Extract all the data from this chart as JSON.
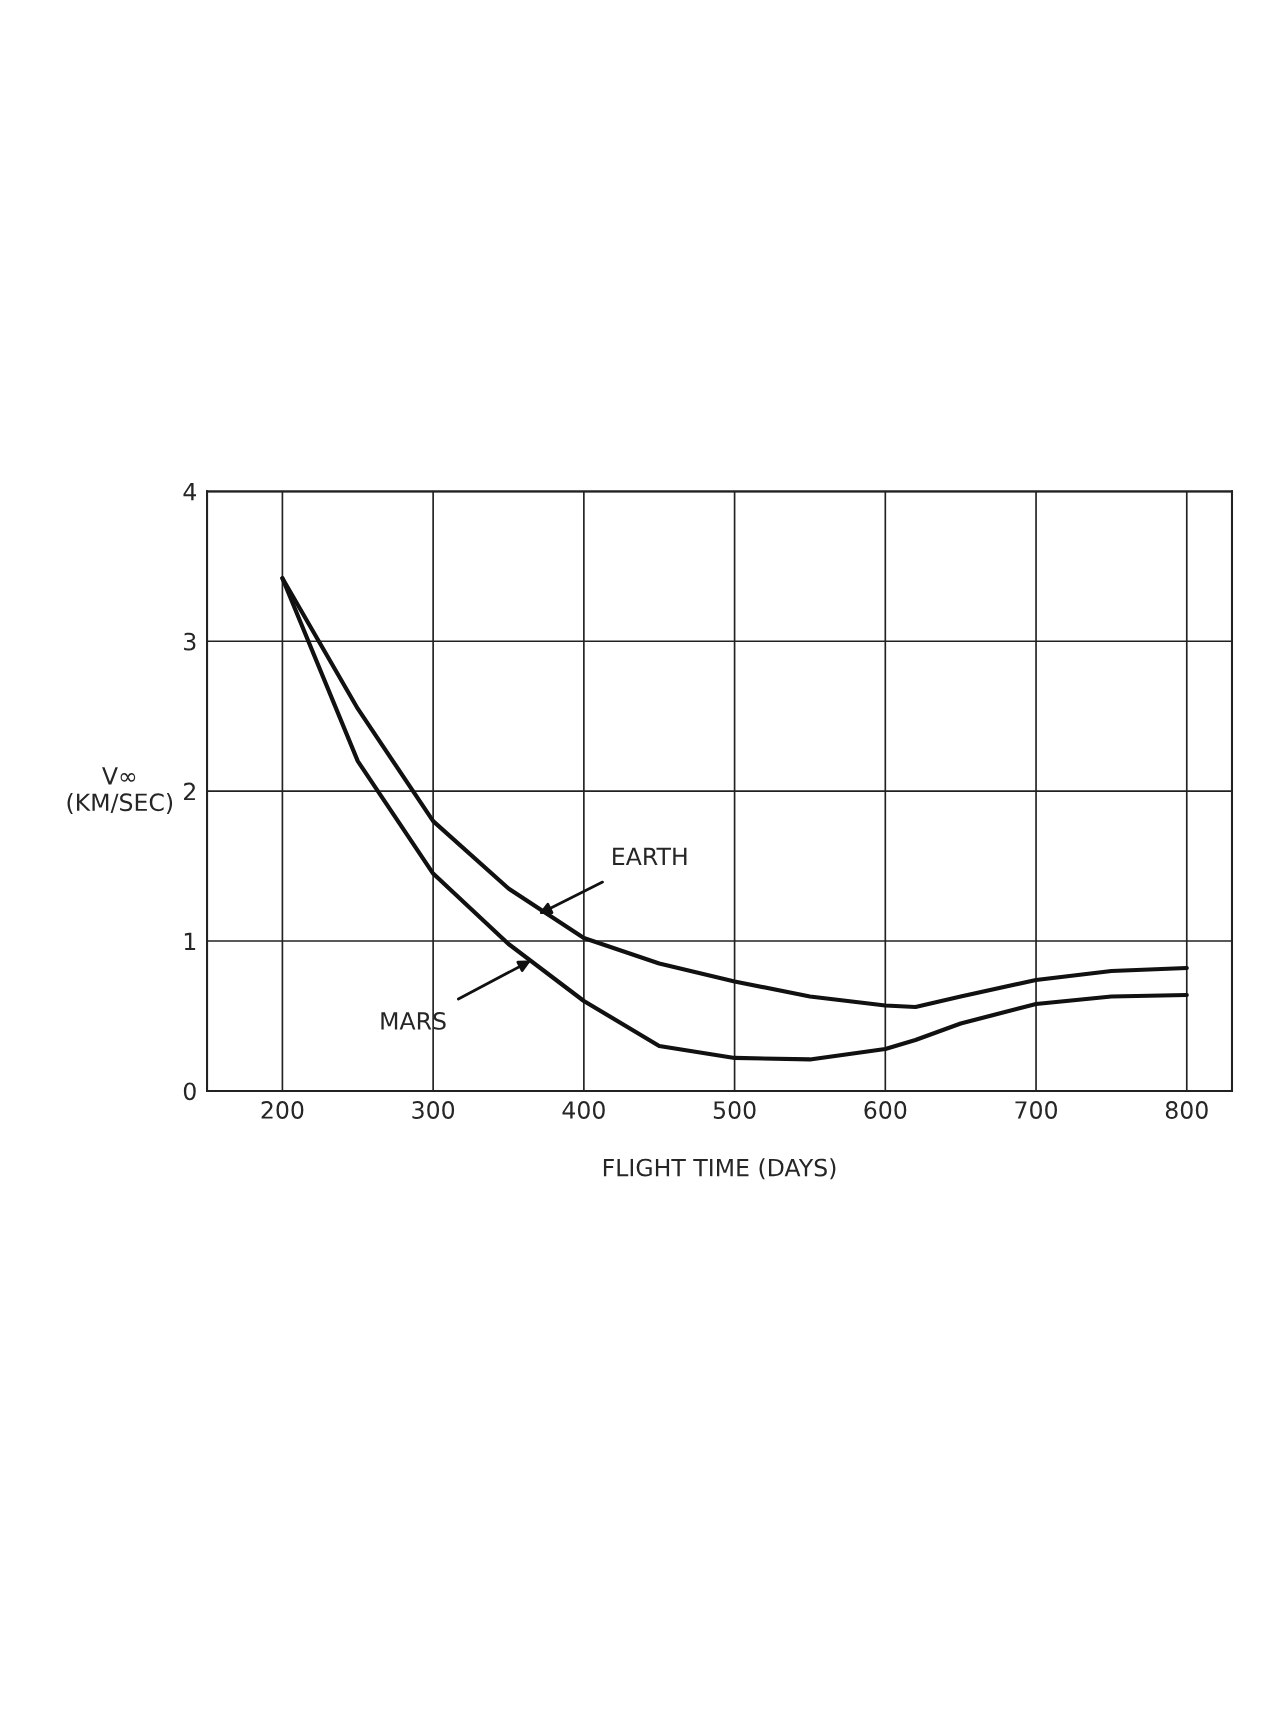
{
  "chart_data": {
    "type": "line",
    "xlabel": "FLIGHT TIME (DAYS)",
    "ylabel": "V∞\n(KM/SEC)",
    "x": [
      200,
      250,
      300,
      350,
      400,
      450,
      500,
      550,
      600,
      620,
      650,
      700,
      750,
      800
    ],
    "series": [
      {
        "color": "#111111",
        "values": [
          3.42,
          2.55,
          1.8,
          1.35,
          1.02,
          0.85,
          0.73,
          0.63,
          0.57,
          0.56,
          0.63,
          0.74,
          0.8,
          0.82
        ]
      },
      {
        "color": "#111111",
        "values": [
          3.42,
          2.2,
          1.45,
          0.98,
          0.6,
          0.3,
          0.22,
          0.21,
          0.28,
          0.34,
          0.45,
          0.58,
          0.63,
          0.64
        ]
      }
    ],
    "annotations": [
      {
        "text": "EARTH",
        "x": 370,
        "y": 1.18
      },
      {
        "text": "MARS",
        "x": 365,
        "y": 0.87
      }
    ],
    "xlim": [
      150,
      830
    ],
    "ylim": [
      0,
      4
    ],
    "xticks": [
      200,
      300,
      400,
      500,
      600,
      700,
      800
    ],
    "yticks": [
      0,
      1,
      2,
      3,
      4
    ],
    "grid": true,
    "line_style": "solid",
    "marker": "none"
  }
}
